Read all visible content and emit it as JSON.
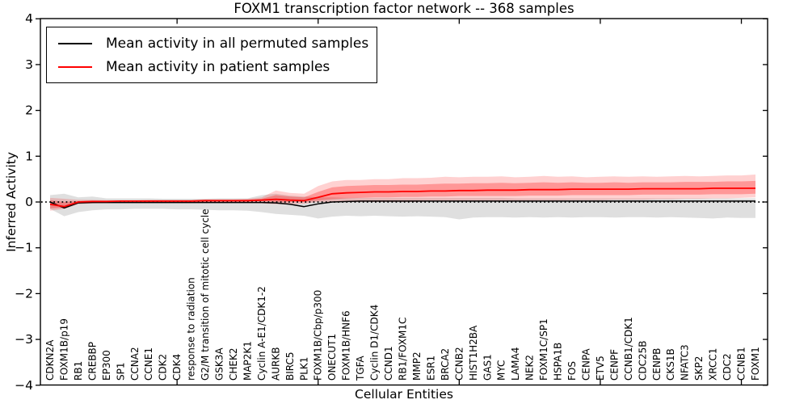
{
  "chart_data": {
    "type": "line",
    "title": "FOXM1 transcription factor network -- 368 samples",
    "xlabel": "Cellular Entities",
    "ylabel": "Inferred Activity",
    "ylim": [
      -4,
      4
    ],
    "yticks": [
      4,
      3,
      2,
      1,
      0,
      -1,
      -2,
      -3,
      -4
    ],
    "xtick_values": [
      10,
      20,
      30,
      40,
      50
    ],
    "grid": false,
    "legend_position": "upper left",
    "zero_line": {
      "style": "dotted",
      "color": "#000000",
      "y": 0
    },
    "colors": {
      "permuted_line": "#000000",
      "patient_line": "#ff0000",
      "permuted_band": "rgba(128,128,128,0.25)",
      "patient_band_outer": "rgba(255,0,0,0.18)",
      "patient_band_inner": "rgba(255,0,0,0.28)"
    },
    "categories": [
      "CDKN2A",
      "FOXM1B/p19",
      "RB1",
      "CREBBP",
      "EP300",
      "SP1",
      "CCNA2",
      "CCNE1",
      "CDK2",
      "CDK4",
      "response to radiation",
      "G2/M transition of mitotic cell cycle",
      "GSK3A",
      "CHEK2",
      "MAP2K1",
      "Cyclin A-E1/CDK1-2",
      "AURKB",
      "BIRC5",
      "PLK1",
      "FOXM1B/Cbp/p300",
      "ONECUT1",
      "FOXM1B/HNF6",
      "TGFA",
      "Cyclin D1/CDK4",
      "CCND1",
      "RB1/FOXM1C",
      "MMP2",
      "ESR1",
      "BRCA2",
      "CCNB2",
      "HIST1H2BA",
      "GAS1",
      "MYC",
      "LAMA4",
      "NEK2",
      "FOXM1C/SP1",
      "HSPA1B",
      "FOS",
      "CENPA",
      "ETV5",
      "CENPF",
      "CCNB1/CDK1",
      "CDC25B",
      "CENPB",
      "CKS1B",
      "NFATC3",
      "SKP2",
      "XRCC1",
      "CDC2",
      "CCNB1",
      "FOXM1"
    ],
    "series": [
      {
        "name": "Mean activity in all permuted samples",
        "color": "#000000",
        "mean": [
          0.0,
          -0.13,
          -0.02,
          -0.01,
          -0.01,
          -0.01,
          -0.01,
          -0.01,
          -0.01,
          -0.01,
          -0.01,
          -0.01,
          -0.01,
          -0.01,
          -0.01,
          -0.01,
          -0.02,
          -0.05,
          -0.1,
          -0.04,
          0.0,
          0.01,
          0.02,
          0.02,
          0.02,
          0.02,
          0.02,
          0.02,
          0.02,
          0.02,
          0.02,
          0.02,
          0.02,
          0.02,
          0.02,
          0.02,
          0.02,
          0.02,
          0.02,
          0.02,
          0.02,
          0.02,
          0.02,
          0.02,
          0.02,
          0.02,
          0.02,
          0.02,
          0.02,
          0.02,
          0.02
        ],
        "band_high": [
          0.15,
          0.18,
          0.1,
          0.12,
          0.08,
          0.08,
          0.08,
          0.08,
          0.07,
          0.07,
          0.07,
          0.07,
          0.08,
          0.08,
          0.08,
          0.15,
          0.18,
          0.14,
          0.12,
          0.1,
          0.1,
          0.09,
          0.09,
          0.09,
          0.09,
          0.09,
          0.09,
          0.09,
          0.09,
          0.09,
          0.09,
          0.09,
          0.09,
          0.08,
          0.08,
          0.08,
          0.08,
          0.08,
          0.08,
          0.08,
          0.08,
          0.08,
          0.08,
          0.08,
          0.08,
          0.08,
          0.08,
          0.08,
          0.08,
          0.08,
          0.08
        ],
        "band_low": [
          -0.15,
          -0.31,
          -0.22,
          -0.18,
          -0.16,
          -0.16,
          -0.15,
          -0.15,
          -0.15,
          -0.16,
          -0.16,
          -0.17,
          -0.18,
          -0.18,
          -0.19,
          -0.22,
          -0.26,
          -0.28,
          -0.3,
          -0.36,
          -0.32,
          -0.3,
          -0.31,
          -0.3,
          -0.31,
          -0.32,
          -0.31,
          -0.32,
          -0.33,
          -0.38,
          -0.34,
          -0.33,
          -0.33,
          -0.34,
          -0.33,
          -0.34,
          -0.33,
          -0.34,
          -0.33,
          -0.33,
          -0.34,
          -0.33,
          -0.33,
          -0.34,
          -0.33,
          -0.34,
          -0.35,
          -0.36,
          -0.34,
          -0.35,
          -0.35
        ]
      },
      {
        "name": "Mean activity in patient samples",
        "color": "#ff0000",
        "mean": [
          -0.05,
          -0.1,
          0.0,
          0.01,
          0.01,
          0.02,
          0.02,
          0.02,
          0.02,
          0.02,
          0.02,
          0.03,
          0.03,
          0.03,
          0.03,
          0.04,
          0.06,
          0.04,
          0.03,
          0.1,
          0.18,
          0.2,
          0.21,
          0.22,
          0.22,
          0.23,
          0.23,
          0.24,
          0.24,
          0.25,
          0.25,
          0.26,
          0.26,
          0.26,
          0.27,
          0.27,
          0.27,
          0.28,
          0.28,
          0.28,
          0.28,
          0.28,
          0.29,
          0.29,
          0.29,
          0.29,
          0.29,
          0.3,
          0.3,
          0.3,
          0.3
        ],
        "outer_high": [
          0.09,
          0.07,
          0.05,
          0.05,
          0.04,
          0.04,
          0.04,
          0.05,
          0.05,
          0.05,
          0.05,
          0.06,
          0.06,
          0.06,
          0.07,
          0.1,
          0.25,
          0.2,
          0.18,
          0.35,
          0.45,
          0.48,
          0.48,
          0.5,
          0.5,
          0.52,
          0.52,
          0.53,
          0.55,
          0.54,
          0.55,
          0.55,
          0.56,
          0.54,
          0.55,
          0.57,
          0.55,
          0.56,
          0.54,
          0.55,
          0.56,
          0.55,
          0.56,
          0.55,
          0.56,
          0.57,
          0.56,
          0.57,
          0.58,
          0.58,
          0.6
        ],
        "outer_low": [
          -0.19,
          -0.15,
          -0.05,
          -0.03,
          -0.02,
          -0.02,
          -0.02,
          -0.02,
          -0.02,
          -0.02,
          -0.02,
          -0.02,
          -0.02,
          -0.02,
          -0.02,
          -0.03,
          -0.05,
          -0.05,
          -0.04,
          0.0,
          0.0,
          0.0,
          0.0,
          0.0,
          0.0,
          0.0,
          0.0,
          0.01,
          0.01,
          0.01,
          0.02,
          0.02,
          0.02,
          0.02,
          0.03,
          0.03,
          0.03,
          0.04,
          0.04,
          0.04,
          0.05,
          0.05,
          0.05,
          0.06,
          0.06,
          0.07,
          0.07,
          0.08,
          0.08,
          0.09,
          0.1
        ],
        "inner_high": [
          0.04,
          0.0,
          0.02,
          0.03,
          0.03,
          0.03,
          0.03,
          0.03,
          0.03,
          0.03,
          0.03,
          0.04,
          0.04,
          0.04,
          0.05,
          0.07,
          0.15,
          0.12,
          0.1,
          0.22,
          0.32,
          0.35,
          0.36,
          0.37,
          0.37,
          0.38,
          0.38,
          0.39,
          0.4,
          0.4,
          0.41,
          0.41,
          0.42,
          0.41,
          0.42,
          0.43,
          0.42,
          0.43,
          0.42,
          0.42,
          0.43,
          0.42,
          0.43,
          0.43,
          0.43,
          0.44,
          0.44,
          0.44,
          0.45,
          0.45,
          0.46
        ],
        "inner_low": [
          -0.14,
          -0.12,
          -0.03,
          -0.01,
          -0.01,
          0.0,
          0.0,
          0.0,
          0.0,
          0.0,
          0.0,
          0.01,
          0.01,
          0.01,
          0.01,
          0.02,
          0.0,
          0.0,
          0.0,
          0.03,
          0.06,
          0.08,
          0.09,
          0.1,
          0.1,
          0.11,
          0.11,
          0.12,
          0.12,
          0.13,
          0.13,
          0.13,
          0.13,
          0.13,
          0.14,
          0.14,
          0.14,
          0.15,
          0.15,
          0.15,
          0.15,
          0.15,
          0.16,
          0.16,
          0.16,
          0.16,
          0.16,
          0.17,
          0.17,
          0.17,
          0.18
        ]
      }
    ]
  }
}
